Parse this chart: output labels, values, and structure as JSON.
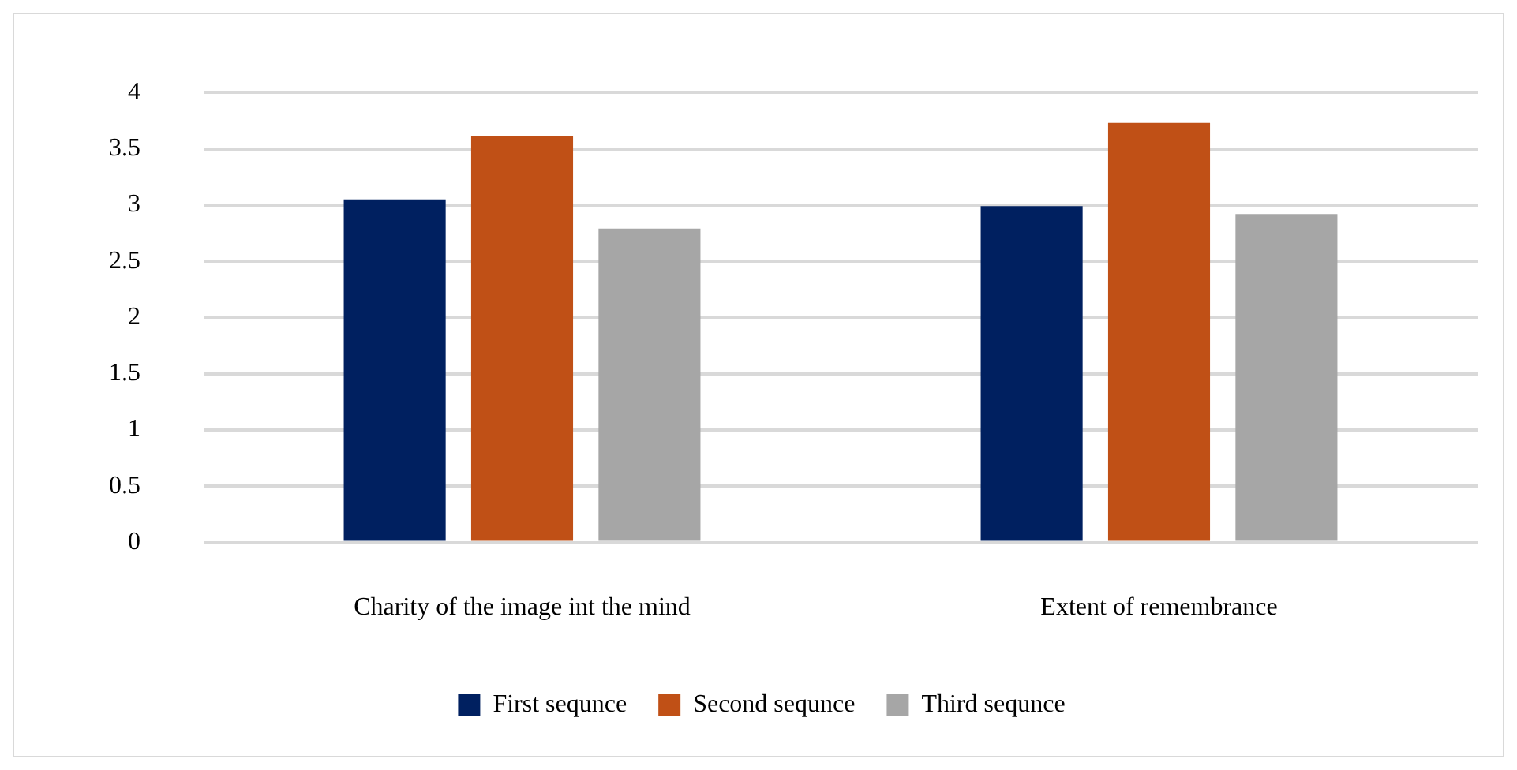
{
  "chart_data": {
    "type": "bar",
    "categories": [
      "Charity of the image int the mind",
      "Extent of remembrance"
    ],
    "series": [
      {
        "name": "First sequnce",
        "color": "#002060",
        "values": [
          3.05,
          2.99
        ]
      },
      {
        "name": "Second sequnce",
        "color": "#c05016",
        "values": [
          3.61,
          3.73
        ]
      },
      {
        "name": "Third sequnce",
        "color": "#a6a6a6",
        "values": [
          2.79,
          2.92
        ]
      }
    ],
    "ylim": [
      0,
      4
    ],
    "yticks": [
      0,
      0.5,
      1,
      1.5,
      2,
      2.5,
      3,
      3.5,
      4
    ],
    "grid": "y",
    "legend": "bottom"
  }
}
